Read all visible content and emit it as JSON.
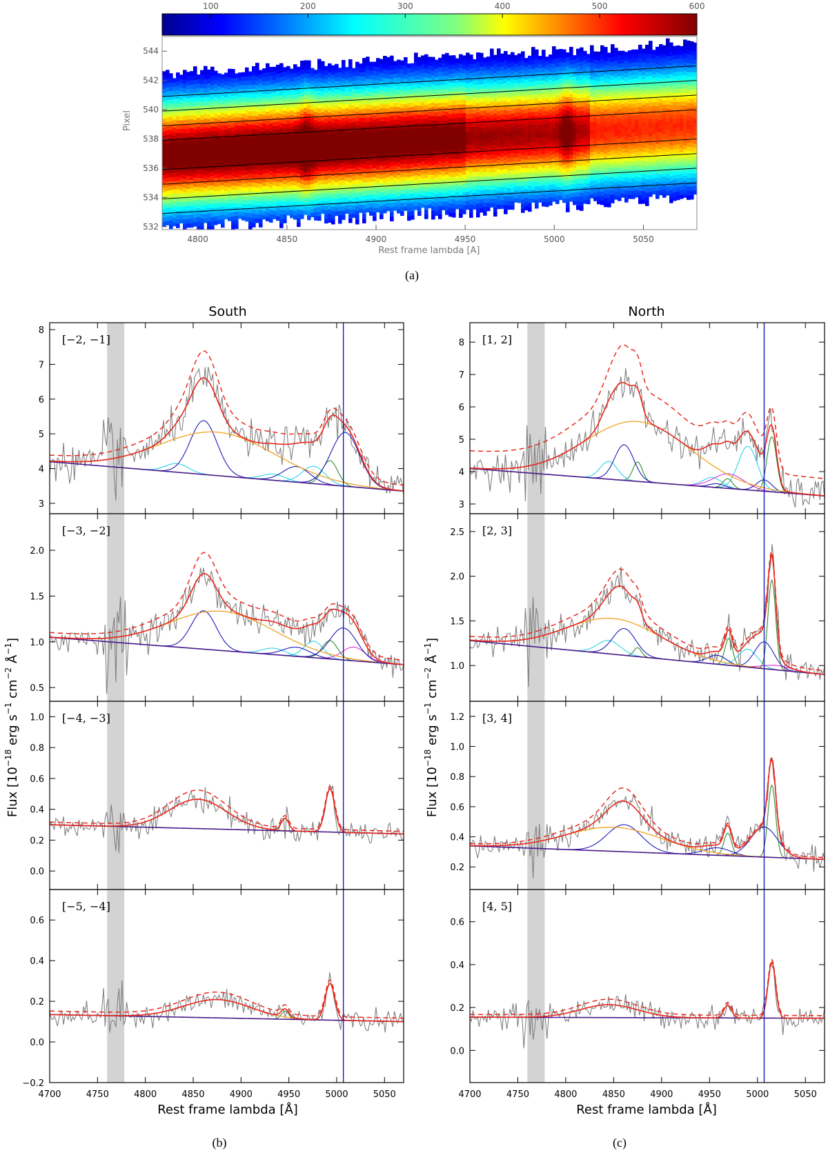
{
  "figure": {
    "captions": [
      "(a)",
      "(b)",
      "(c)"
    ],
    "titles": {
      "south": "South",
      "north": "North"
    }
  },
  "colors": {
    "data": "#808080",
    "fit_total": "#e8261c",
    "dashed": "#e8261c",
    "continuum": "#4b1a8a",
    "broad": "#f0a020",
    "hbeta_narrow": "#1a1ab5",
    "cyan": "#2ad4e8",
    "green": "#2e8b2e",
    "magenta": "#e02ad8",
    "grey_band": "#d3d3d3",
    "vline": "#1a1ab5"
  },
  "chart_data": [
    {
      "id": "a",
      "type": "heatmap",
      "xlabel": "Rest frame lambda [A]",
      "ylabel": "Pixel",
      "xlim": [
        4780,
        5080
      ],
      "ylim": [
        531.8,
        545
      ],
      "xticks": [
        4800,
        4850,
        4900,
        4950,
        5000,
        5050
      ],
      "yticks": [
        532,
        534,
        536,
        538,
        540,
        542,
        544
      ],
      "colorbar": {
        "min": 50,
        "max": 600,
        "ticks": [
          100,
          200,
          300,
          400,
          500,
          600
        ],
        "colormap": "jet"
      },
      "trace": {
        "center_at_4780": 536.9,
        "center_at_5080": 539.0
      },
      "slit_lines_offsets": [
        -4,
        -3,
        -2,
        -1,
        1,
        2,
        3,
        4
      ]
    },
    {
      "id": "b",
      "type": "line",
      "column": "South",
      "xlabel": "Rest frame lambda [Å]",
      "ylabel": "Flux [10^-18 erg s^-1 cm^-2 Å^-1]",
      "xlim": [
        4700,
        5070
      ],
      "xticks": [
        4700,
        4750,
        4800,
        4850,
        4900,
        4950,
        5000,
        5050
      ],
      "grey_band": [
        4760,
        4778
      ],
      "vline": 5007,
      "panels": [
        {
          "label": "[−2, −1]",
          "ylim": [
            2.7,
            8.2
          ],
          "yticks": [
            3,
            4,
            5,
            6,
            7,
            8
          ],
          "continuum": [
            4.2,
            3.35
          ],
          "broad": {
            "center": 4875,
            "amp": 1.25,
            "sigma": 60
          },
          "hb": {
            "center": 4861,
            "amp": 1.55,
            "sigma": 14
          },
          "cyan": [
            [
              4833,
              0.25,
              12
            ],
            [
              4976,
              0.5,
              12
            ],
            [
              4934,
              0.18,
              12
            ]
          ],
          "blue": [
            [
              4958,
              0.45,
              14
            ],
            [
              5009,
              1.55,
              15
            ]
          ],
          "green": [
            [
              4993,
              0.7,
              8
            ]
          ],
          "magenta": [],
          "dashed_offset": 0.15,
          "noise": 0.18
        },
        {
          "label": "[−3, −2]",
          "ylim": [
            0.35,
            2.4
          ],
          "yticks": [
            0.5,
            1.0,
            1.5,
            2.0
          ],
          "continuum": [
            1.05,
            0.75
          ],
          "broad": {
            "center": 4880,
            "amp": 0.43,
            "sigma": 55
          },
          "hb": {
            "center": 4861,
            "amp": 0.42,
            "sigma": 13
          },
          "cyan": [
            [
              4976,
              0.18,
              10
            ],
            [
              4934,
              0.07,
              12
            ]
          ],
          "blue": [
            [
              4958,
              0.1,
              14
            ],
            [
              5007,
              0.35,
              14
            ]
          ],
          "green": [
            [
              4993,
              0.2,
              8
            ]
          ],
          "magenta": [
            [
              5018,
              0.15,
              12
            ]
          ],
          "dashed_offset": 0.12,
          "noise": 0.16
        },
        {
          "label": "[−4, −3]",
          "ylim": [
            -0.12,
            1.1
          ],
          "yticks": [
            0.0,
            0.2,
            0.4,
            0.6,
            0.8,
            1.0
          ],
          "continuum": [
            0.3,
            0.24
          ],
          "broad": {
            "center": 4855,
            "amp": 0.19,
            "sigma": 30
          },
          "hb": null,
          "cyan": [],
          "blue": [],
          "green": [
            [
              4946,
              0.08,
              4
            ],
            [
              4993,
              0.28,
              5
            ]
          ],
          "magenta": [],
          "dashed_offset": 0.07,
          "noise": 0.13
        },
        {
          "label": "[−5, −4]",
          "ylim": [
            -0.2,
            0.75
          ],
          "yticks": [
            -0.2,
            0.0,
            0.2,
            0.4,
            0.6
          ],
          "continuum": [
            0.135,
            0.1
          ],
          "broad": {
            "center": 4875,
            "amp": 0.09,
            "sigma": 35
          },
          "hb": null,
          "cyan": [],
          "blue": [],
          "green": [
            [
              4946,
              0.04,
              4
            ],
            [
              4993,
              0.18,
              5
            ]
          ],
          "magenta": [],
          "dashed_offset": 0.09,
          "noise": 0.11
        }
      ]
    },
    {
      "id": "c",
      "type": "line",
      "column": "North",
      "xlabel": "Rest frame lambda [Å]",
      "ylabel": "Flux [10^-18 erg s^-1 cm^-2 Å^-1]",
      "xlim": [
        4700,
        5070
      ],
      "xticks": [
        4700,
        4750,
        4800,
        4850,
        4900,
        4950,
        5000,
        5050
      ],
      "grey_band": [
        4760,
        4778
      ],
      "vline": 5007,
      "panels": [
        {
          "label": "[1, 2]",
          "ylim": [
            2.7,
            8.6
          ],
          "yticks": [
            3,
            4,
            5,
            6,
            7,
            8
          ],
          "continuum": [
            4.1,
            3.25
          ],
          "broad": {
            "center": 4875,
            "amp": 1.85,
            "sigma": 55
          },
          "hb": {
            "center": 4861,
            "amp": 1.1,
            "sigma": 10
          },
          "cyan": [
            [
              4845,
              0.55,
              9
            ],
            [
              4990,
              1.35,
              10
            ],
            [
              4953,
              0.3,
              10
            ]
          ],
          "blue": [
            [
              4958,
              0.12,
              8
            ],
            [
              5007,
              0.35,
              8
            ]
          ],
          "green": [
            [
              4875,
              0.6,
              5
            ],
            [
              5015,
              1.7,
              5
            ],
            [
              4969,
              0.3,
              5
            ]
          ],
          "magenta": [
            [
              4970,
              0.45,
              16
            ]
          ],
          "dashed_offset": 0.45,
          "noise": 0.17
        },
        {
          "label": "[2, 3]",
          "ylim": [
            0.6,
            2.7
          ],
          "yticks": [
            1.0,
            1.5,
            2.0,
            2.5
          ],
          "continuum": [
            1.28,
            0.9
          ],
          "broad": {
            "center": 4850,
            "amp": 0.4,
            "sigma": 50
          },
          "hb": {
            "center": 4861,
            "amp": 0.3,
            "sigma": 12
          },
          "cyan": [
            [
              4845,
              0.15,
              12
            ],
            [
              4990,
              0.2,
              10
            ]
          ],
          "blue": [
            [
              4958,
              0.1,
              10
            ],
            [
              5007,
              0.3,
              10
            ]
          ],
          "green": [
            [
              4970,
              0.3,
              4
            ],
            [
              4875,
              0.1,
              4
            ],
            [
              5015,
              1.0,
              4
            ]
          ],
          "magenta": [
            [
              5020,
              0.05,
              15
            ]
          ],
          "dashed_offset": 0.1,
          "noise": 0.15
        },
        {
          "label": "[3, 4]",
          "ylim": [
            0.05,
            1.3
          ],
          "yticks": [
            0.2,
            0.4,
            0.6,
            0.8,
            1.0,
            1.2
          ],
          "continuum": [
            0.34,
            0.25
          ],
          "broad": {
            "center": 4850,
            "amp": 0.16,
            "sigma": 50
          },
          "hb": {
            "center": 4861,
            "amp": 0.18,
            "sigma": 18
          },
          "cyan": [],
          "blue": [
            [
              4958,
              0.05,
              14
            ],
            [
              5007,
              0.2,
              14
            ]
          ],
          "green": [
            [
              4969,
              0.15,
              4
            ],
            [
              5015,
              0.48,
              4
            ]
          ],
          "magenta": [],
          "dashed_offset": 0.05,
          "noise": 0.13
        },
        {
          "label": "[4, 5]",
          "ylim": [
            -0.15,
            0.75
          ],
          "yticks": [
            0.0,
            0.2,
            0.4,
            0.6
          ],
          "continuum": [
            0.155,
            0.15
          ],
          "broad": {
            "center": 4845,
            "amp": 0.06,
            "sigma": 30
          },
          "hb": null,
          "cyan": [],
          "blue": [],
          "green": [
            [
              4969,
              0.06,
              4
            ],
            [
              5015,
              0.26,
              4
            ]
          ],
          "magenta": [],
          "dashed_offset": 0.07,
          "noise": 0.12
        }
      ]
    }
  ]
}
